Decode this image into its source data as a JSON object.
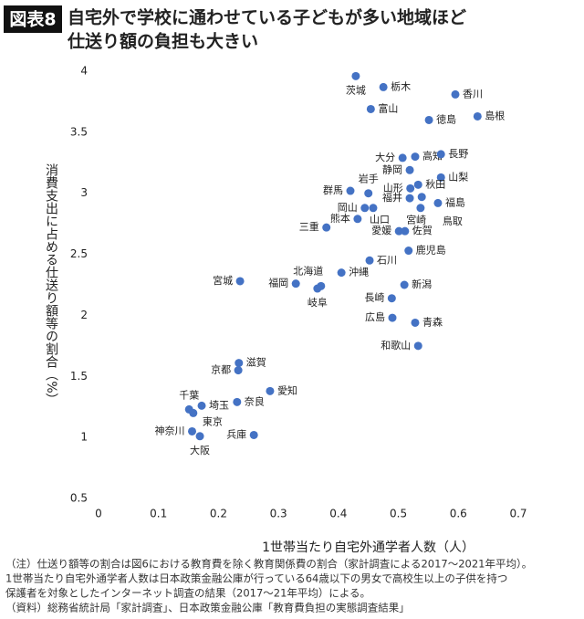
{
  "header": {
    "badge": "図表8",
    "title": [
      "自宅外で学校に通わせている子どもが多い地域ほど",
      "仕送り額の負担も大きい"
    ]
  },
  "chart_data": {
    "type": "scatter",
    "x_label": "1世帯当たり自宅外通学者人数（人）",
    "y_label": "消費支出に占める仕送り額等の割合（%）",
    "xlim": [
      0,
      0.7
    ],
    "xticks": [
      0,
      0.1,
      0.2,
      0.3,
      0.4,
      0.5,
      0.6,
      0.7
    ],
    "ylim": [
      0.5,
      4
    ],
    "yticks": [
      0.5,
      1,
      1.5,
      2,
      2.5,
      3,
      3.5,
      4
    ],
    "grid": false,
    "color": "#4472c4",
    "point_labels": [
      "茨城",
      "栃木",
      "香川",
      "富山",
      "島根",
      "徳島",
      "高知",
      "大分",
      "長野",
      "静岡",
      "山梨",
      "岩手",
      "群馬",
      "山形",
      "秋田",
      "福井",
      "福島",
      "岡山",
      "山口",
      "熊本",
      "宮崎",
      "鳥取",
      "三重",
      "愛媛",
      "佐賀",
      "鹿児島",
      "石川",
      "北海道",
      "沖縄",
      "宮城",
      "福岡",
      "岐阜",
      "新潟",
      "長崎",
      "広島",
      "青森",
      "和歌山",
      "滋賀",
      "京都",
      "愛知",
      "奈良",
      "千葉",
      "埼玉",
      "東京",
      "神奈川",
      "大阪",
      "兵庫"
    ],
    "x": [
      0.429,
      0.475,
      0.595,
      0.454,
      0.632,
      0.551,
      0.528,
      0.507,
      0.571,
      0.519,
      0.571,
      0.45,
      0.42,
      0.52,
      0.533,
      0.519,
      0.566,
      0.444,
      0.458,
      0.432,
      0.539,
      0.537,
      0.38,
      0.501,
      0.511,
      0.517,
      0.452,
      0.371,
      0.405,
      0.236,
      0.329,
      0.365,
      0.51,
      0.489,
      0.49,
      0.528,
      0.533,
      0.234,
      0.233,
      0.286,
      0.231,
      0.151,
      0.172,
      0.158,
      0.156,
      0.169,
      0.259
    ],
    "values": [
      3.96,
      3.87,
      3.81,
      3.69,
      3.63,
      3.6,
      3.3,
      3.29,
      3.32,
      3.19,
      3.13,
      3.0,
      3.02,
      3.04,
      3.07,
      2.96,
      2.92,
      2.88,
      2.88,
      2.79,
      2.97,
      2.88,
      2.72,
      2.69,
      2.69,
      2.53,
      2.45,
      2.24,
      2.35,
      2.28,
      2.26,
      2.22,
      2.25,
      2.14,
      1.98,
      1.94,
      1.75,
      1.61,
      1.55,
      1.38,
      1.29,
      1.23,
      1.26,
      1.2,
      1.05,
      1.01,
      1.02
    ]
  },
  "notes": [
    "（注）仕送り額等の割合は図6における教育費を除く教育関係費の割合（家計調査による2017～2021年平均）。",
    "1世帯当たり自宅外通学者人数は日本政策金融公庫が行っている64歳以下の男女で高校生以上の子供を持つ",
    "保護者を対象としたインターネット調査の結果（2017～21年平均）による。",
    "（資料）総務省統計局「家計調査」、日本政策金融公庫「教育費負担の実態調査結果」"
  ]
}
